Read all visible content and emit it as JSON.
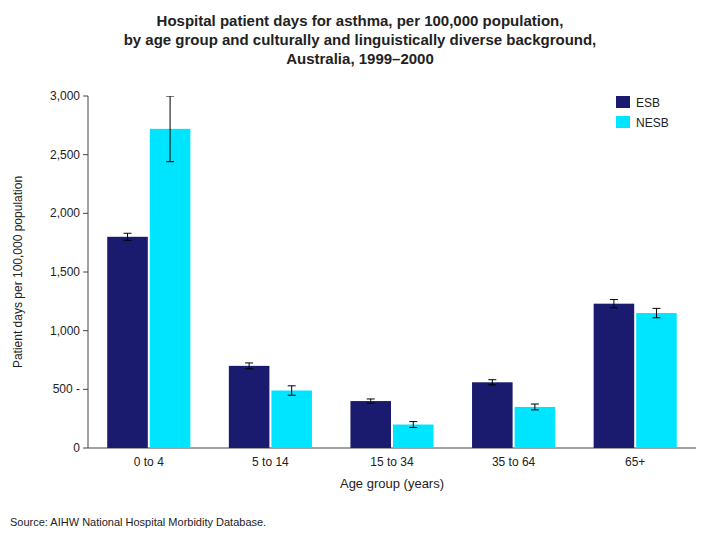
{
  "chart_data": {
    "type": "bar",
    "title": "Hospital patient days for asthma, per 100,000 population,\nby age group and culturally and linguistically diverse background,\nAustralia, 1999–2000",
    "x_label": "Age group (years)",
    "y_label": "Patient days per 100,000 population",
    "annotations": [
      "Source: AIHW National Hospital Morbidity Database."
    ],
    "categories": [
      "0 to 4",
      "5 to 14",
      "15 to 34",
      "35 to 64",
      "65+"
    ],
    "series": [
      {
        "name": "ESB",
        "color": "#1a1a6e",
        "values": [
          1800,
          700,
          400,
          560,
          1230
        ],
        "errors": [
          30,
          25,
          18,
          22,
          35
        ]
      },
      {
        "name": "NESB",
        "color": "#00e5ff",
        "values": [
          2720,
          490,
          200,
          350,
          1150
        ],
        "errors": [
          280,
          40,
          25,
          25,
          40
        ]
      }
    ],
    "ylim": [
      0,
      3000
    ],
    "yticks": [
      0,
      {
        "value": 500,
        "label": "500 -"
      },
      {
        "value": 1000,
        "label": "1,000"
      },
      {
        "value": 1500,
        "label": "1,500"
      },
      {
        "value": 2000,
        "label": "2,000"
      },
      {
        "value": 2500,
        "label": "2,500"
      },
      {
        "value": 3000,
        "label": "3,000"
      }
    ],
    "grid": false,
    "legend": "upper right"
  }
}
